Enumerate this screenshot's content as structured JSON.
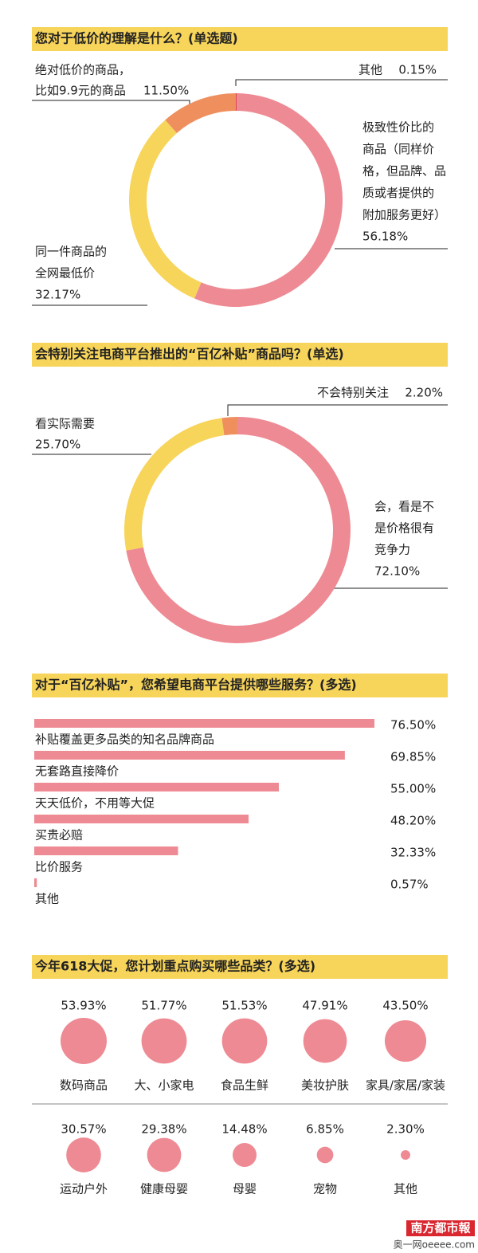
{
  "chart_data": [
    {
      "type": "pie",
      "title": "您对于低价的理解是什么？(单选题)",
      "categories": [
        [
          "其他"
        ],
        [
          "极致性价比的",
          "商品（同样价",
          "格，但品牌、品",
          "质或者提供的",
          "附加服务更好）"
        ],
        [
          "同一件商品的",
          "全网最低价"
        ],
        [
          "绝对低价的商品，",
          "比如9.9元的商品"
        ]
      ],
      "values": [
        0.15,
        56.18,
        32.17,
        11.5
      ],
      "value_labels": [
        "0.15%",
        "56.18%",
        "32.17%",
        "11.50%"
      ],
      "colors": [
        "#d9434c",
        "#ee8a93",
        "#f7d45a",
        "#ef8f5e"
      ]
    },
    {
      "type": "pie",
      "title": "会特别关注电商平台推出的“百亿补贴”商品吗？(单选)",
      "categories": [
        [
          "会，看是不",
          "是价格很有",
          "竞争力"
        ],
        [
          "看实际需要"
        ],
        [
          "不会特别关注"
        ]
      ],
      "values": [
        72.1,
        25.7,
        2.2
      ],
      "value_labels": [
        "72.10%",
        "25.70%",
        "2.20%"
      ],
      "colors": [
        "#ee8a93",
        "#f7d45a",
        "#ef8f5e"
      ]
    },
    {
      "type": "hbar",
      "title": "对于“百亿补贴”，您希望电商平台提供哪些服务？(多选)",
      "categories": [
        "补贴覆盖更多品类的知名品牌商品",
        "无套路直接降价",
        "天天低价，不用等大促",
        "买贵必赔",
        "比价服务",
        "其他"
      ],
      "values": [
        76.5,
        69.85,
        55.0,
        48.2,
        32.33,
        0.57
      ],
      "value_labels": [
        "76.50%",
        "69.85%",
        "55.00%",
        "48.20%",
        "32.33%",
        "0.57%"
      ],
      "color": "#ee8a93"
    },
    {
      "type": "bubble",
      "title": "今年618大促，您计划重点购买哪些品类？(多选)",
      "categories": [
        "数码商品",
        "大、小家电",
        "食品生鲜",
        "美妆护肤",
        "家具/家居/家装",
        "运动户外",
        "健康母婴",
        "母婴",
        "宠物",
        "其他"
      ],
      "values": [
        53.93,
        51.77,
        51.53,
        47.91,
        43.5,
        30.57,
        29.38,
        14.48,
        6.85,
        2.3
      ],
      "value_labels": [
        "53.93%",
        "51.77%",
        "51.53%",
        "47.91%",
        "43.50%",
        "30.57%",
        "29.38%",
        "14.48%",
        "6.85%",
        "2.30%"
      ],
      "color": "#ee8a93"
    }
  ],
  "watermark": {
    "logo": "南方都市報",
    "site": "奥一网oeeee.com"
  }
}
